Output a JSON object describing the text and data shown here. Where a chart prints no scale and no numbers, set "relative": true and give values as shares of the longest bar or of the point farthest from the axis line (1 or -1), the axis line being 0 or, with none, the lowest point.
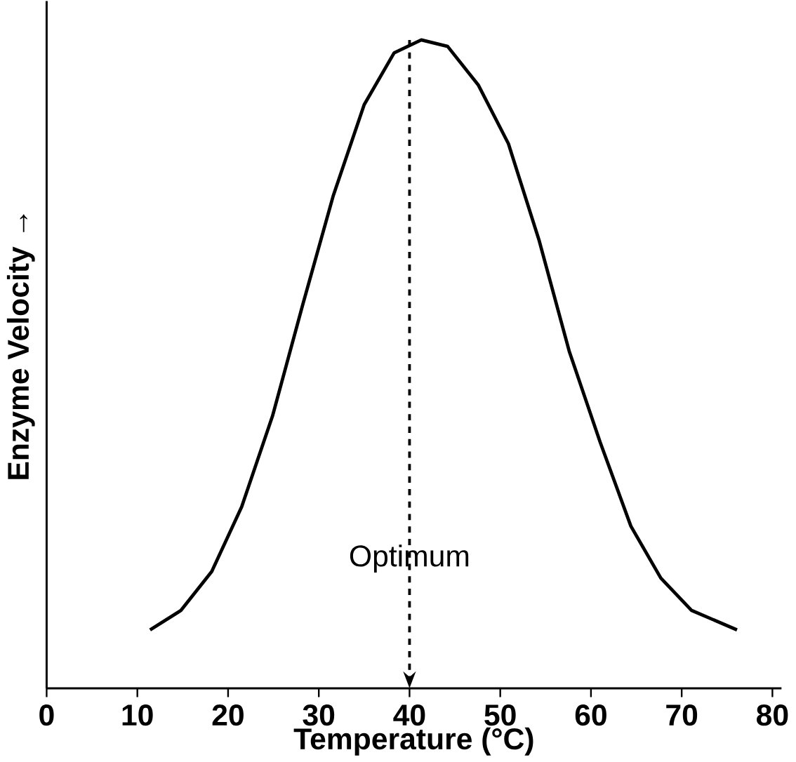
{
  "chart_data": {
    "type": "line",
    "xlabel": "Temperature (°C)",
    "ylabel": "Enzyme Velocity →",
    "relative": true,
    "xlim": [
      0,
      81
    ],
    "xticks": [
      0,
      10,
      20,
      30,
      40,
      50,
      60,
      70,
      80
    ],
    "series": [
      {
        "color": "#000000",
        "x": [
          11.4,
          14.8,
          18.2,
          21.5,
          24.9,
          28.2,
          31.6,
          35.0,
          38.3,
          41.3,
          44.2,
          47.6,
          50.9,
          54.3,
          57.6,
          61.0,
          64.4,
          67.7,
          71.1,
          76.1
        ],
        "values": [
          0.09,
          0.12,
          0.18,
          0.28,
          0.42,
          0.59,
          0.76,
          0.9,
          0.98,
          1,
          0.99,
          0.93,
          0.84,
          0.69,
          0.52,
          0.38,
          0.25,
          0.17,
          0.12,
          0.09
        ]
      }
    ],
    "ref_lines": [
      {
        "axis": "x",
        "value": 40,
        "label": "Optimum",
        "line_style": "dashed",
        "color": "#000000"
      }
    ]
  }
}
